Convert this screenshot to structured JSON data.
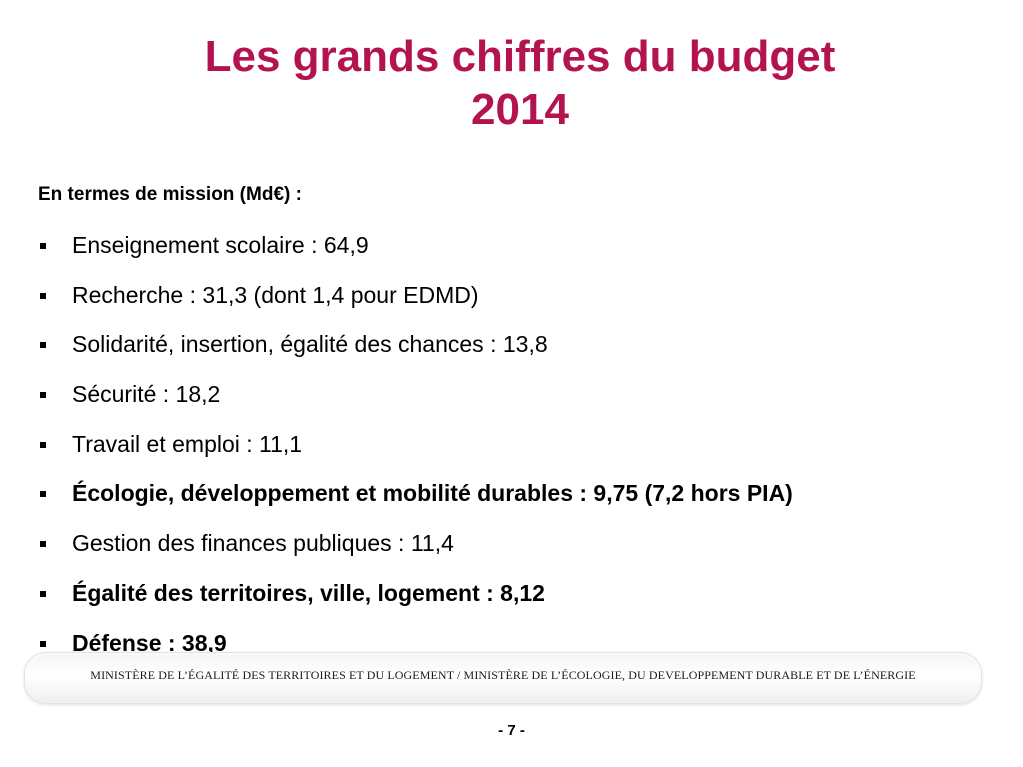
{
  "slide": {
    "title_line1": "Les grands chiffres du budget",
    "title_line2": "2014",
    "subheading": "En termes de mission (Md€) :",
    "colors": {
      "title": "#b3144f",
      "text": "#000000"
    }
  },
  "missions": [
    {
      "text": "Enseignement scolaire : 64,9",
      "bold": false
    },
    {
      "text": "Recherche : 31,3 (dont 1,4 pour EDMD)",
      "bold": false
    },
    {
      "text": "Solidarité, insertion, égalité des chances : 13,8",
      "bold": false
    },
    {
      "text": "Sécurité : 18,2",
      "bold": false
    },
    {
      "text": "Travail et emploi : 11,1",
      "bold": false
    },
    {
      "text": "Écologie, développement et mobilité durables : 9,75 (7,2 hors PIA)",
      "bold": true
    },
    {
      "text": "Gestion des finances publiques : 11,4",
      "bold": false
    },
    {
      "text": "Égalité des territoires, ville, logement : 8,12",
      "bold": true
    },
    {
      "text": "Défense : 38,9",
      "bold": true
    }
  ],
  "footer": {
    "ministry": "MINISTÈRE DE L’ÉGALITÉ DES TERRITOIRES ET DU LOGEMENT / MINISTÈRE DE L’ÉCOLOGIE, DU DEVELOPPEMENT DURABLE ET DE L’ÉNERGIE",
    "page_number": "- 7 -"
  }
}
